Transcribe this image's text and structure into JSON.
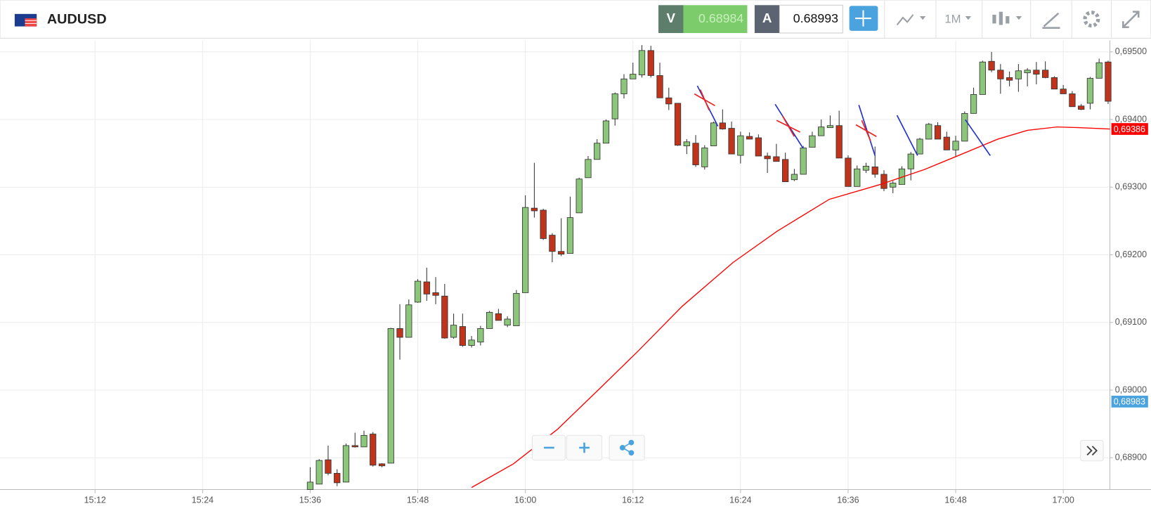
{
  "header": {
    "symbol": "AUDUSD",
    "sell": {
      "label": "V",
      "price": "0.68984"
    },
    "buy": {
      "label": "A",
      "price": "0.68993"
    },
    "timeframe": "1M"
  },
  "chart_data": {
    "type": "candlestick",
    "up_color": "#8cc67a",
    "down_color": "#c1341c",
    "grid": true,
    "xlim": [
      901.4,
      1025.2
    ],
    "ylim": [
      0.68853,
      0.69517
    ],
    "xticks": [
      {
        "value": 912,
        "label": "15:12"
      },
      {
        "value": 924,
        "label": "15:24"
      },
      {
        "value": 936,
        "label": "15:36"
      },
      {
        "value": 948,
        "label": "15:48"
      },
      {
        "value": 960,
        "label": "16:00"
      },
      {
        "value": 972,
        "label": "16:12"
      },
      {
        "value": 984,
        "label": "16:24"
      },
      {
        "value": 996,
        "label": "16:36"
      },
      {
        "value": 1008,
        "label": "16:48"
      },
      {
        "value": 1020,
        "label": "17:00"
      }
    ],
    "yticks": [
      {
        "value": 0.689,
        "label": "0,68900"
      },
      {
        "value": 0.69,
        "label": "0,69000"
      },
      {
        "value": 0.691,
        "label": "0,69100"
      },
      {
        "value": 0.692,
        "label": "0,69200"
      },
      {
        "value": 0.693,
        "label": "0,69300"
      },
      {
        "value": 0.694,
        "label": "0,69400"
      },
      {
        "value": 0.695,
        "label": "0,69500"
      }
    ],
    "x": [
      936,
      937,
      938,
      939,
      940,
      941,
      942,
      943,
      944,
      945,
      946,
      947,
      948,
      949,
      950,
      951,
      952,
      953,
      954,
      955,
      956,
      957,
      958,
      959,
      960,
      961,
      962,
      963,
      964,
      965,
      966,
      967,
      968,
      969,
      970,
      971,
      972,
      973,
      974,
      975,
      976,
      977,
      978,
      979,
      980,
      981,
      982,
      983,
      984,
      985,
      986,
      987,
      988,
      989,
      990,
      991,
      992,
      993,
      994,
      995,
      996,
      997,
      998,
      999,
      1000,
      1001,
      1002,
      1003,
      1004,
      1005,
      1006,
      1007,
      1008,
      1009,
      1010,
      1011,
      1012,
      1013,
      1014,
      1015,
      1016,
      1017,
      1018,
      1019,
      1020,
      1021,
      1022,
      1023,
      1024,
      1025
    ],
    "open": [
      0.68853,
      0.68861,
      0.68897,
      0.68877,
      0.68864,
      0.68918,
      0.68916,
      0.68935,
      0.68891,
      0.68892,
      0.69091,
      0.69078,
      0.6913,
      0.6916,
      0.69144,
      0.69139,
      0.69078,
      0.69094,
      0.69066,
      0.69071,
      0.69091,
      0.69113,
      0.69096,
      0.69095,
      0.69144,
      0.69269,
      0.69266,
      0.69229,
      0.69205,
      0.69202,
      0.69262,
      0.69314,
      0.69341,
      0.69365,
      0.69401,
      0.69438,
      0.6946,
      0.69466,
      0.69502,
      0.69465,
      0.69432,
      0.69424,
      0.69361,
      0.69365,
      0.6933,
      0.69361,
      0.69395,
      0.69387,
      0.69347,
      0.69375,
      0.69373,
      0.69346,
      0.69345,
      0.69341,
      0.69311,
      0.69319,
      0.69359,
      0.69376,
      0.69388,
      0.69391,
      0.69343,
      0.69301,
      0.69325,
      0.6933,
      0.69319,
      0.693,
      0.69304,
      0.69327,
      0.69349,
      0.69371,
      0.69391,
      0.69374,
      0.69355,
      0.69368,
      0.69409,
      0.69437,
      0.69486,
      0.69473,
      0.69462,
      0.6946,
      0.69469,
      0.69473,
      0.69473,
      0.69462,
      0.69445,
      0.69438,
      0.6942,
      0.69424,
      0.69461,
      0.69485
    ],
    "high": [
      0.68886,
      0.68898,
      0.68918,
      0.68883,
      0.68921,
      0.68937,
      0.6894,
      0.68938,
      0.68892,
      0.69092,
      0.69127,
      0.69134,
      0.69164,
      0.69181,
      0.69167,
      0.69157,
      0.69113,
      0.69113,
      0.6908,
      0.69095,
      0.69117,
      0.6912,
      0.69109,
      0.69148,
      0.69288,
      0.69336,
      0.69268,
      0.69232,
      0.69254,
      0.69286,
      0.69314,
      0.69346,
      0.69371,
      0.694,
      0.6944,
      0.69467,
      0.69484,
      0.6951,
      0.69509,
      0.69484,
      0.69447,
      0.69424,
      0.69371,
      0.69377,
      0.69362,
      0.69397,
      0.69415,
      0.69397,
      0.69382,
      0.69381,
      0.69378,
      0.69351,
      0.69364,
      0.69351,
      0.69327,
      0.69361,
      0.69382,
      0.694,
      0.69406,
      0.69413,
      0.69347,
      0.69332,
      0.69336,
      0.6936,
      0.69325,
      0.69309,
      0.69331,
      0.69352,
      0.69373,
      0.69395,
      0.69396,
      0.69382,
      0.69376,
      0.69412,
      0.69447,
      0.69487,
      0.695,
      0.69482,
      0.69471,
      0.69482,
      0.69476,
      0.69485,
      0.69486,
      0.69464,
      0.69451,
      0.69442,
      0.69423,
      0.69463,
      0.6949,
      0.69487
    ],
    "low": [
      0.68853,
      0.68861,
      0.68874,
      0.68858,
      0.68864,
      0.68915,
      0.68916,
      0.68887,
      0.68886,
      0.68892,
      0.69045,
      0.69078,
      0.69129,
      0.69132,
      0.69127,
      0.69076,
      0.69076,
      0.69064,
      0.69063,
      0.69066,
      0.69091,
      0.69103,
      0.69093,
      0.69095,
      0.69144,
      0.69255,
      0.69222,
      0.69189,
      0.69198,
      0.69202,
      0.69262,
      0.69314,
      0.69341,
      0.69365,
      0.69391,
      0.69431,
      0.6946,
      0.69462,
      0.69462,
      0.69432,
      0.69414,
      0.69361,
      0.69349,
      0.6933,
      0.69326,
      0.69361,
      0.69385,
      0.69349,
      0.69335,
      0.69371,
      0.69346,
      0.69321,
      0.69338,
      0.69308,
      0.69309,
      0.69319,
      0.69359,
      0.69376,
      0.69388,
      0.69343,
      0.69301,
      0.69301,
      0.69321,
      0.69314,
      0.69294,
      0.69291,
      0.69304,
      0.6931,
      0.69349,
      0.69371,
      0.69371,
      0.69355,
      0.69345,
      0.69368,
      0.69409,
      0.69437,
      0.6947,
      0.69438,
      0.69449,
      0.69441,
      0.69449,
      0.69452,
      0.69461,
      0.69445,
      0.69438,
      0.69419,
      0.69414,
      0.69415,
      0.69461,
      0.69423
    ],
    "close": [
      0.68864,
      0.68896,
      0.68877,
      0.68863,
      0.68918,
      0.68916,
      0.68933,
      0.68889,
      0.68888,
      0.69091,
      0.69078,
      0.69126,
      0.69161,
      0.69142,
      0.6914,
      0.69077,
      0.69096,
      0.69066,
      0.69074,
      0.69091,
      0.69115,
      0.69103,
      0.69105,
      0.69143,
      0.6927,
      0.69265,
      0.69224,
      0.69205,
      0.69201,
      0.69255,
      0.69312,
      0.69341,
      0.69365,
      0.69398,
      0.69438,
      0.6946,
      0.69467,
      0.69502,
      0.69465,
      0.69432,
      0.69423,
      0.69362,
      0.69367,
      0.69333,
      0.69358,
      0.69395,
      0.69386,
      0.69349,
      0.69376,
      0.69371,
      0.69346,
      0.69342,
      0.69338,
      0.69308,
      0.69319,
      0.69358,
      0.69376,
      0.69389,
      0.69391,
      0.69343,
      0.69301,
      0.69327,
      0.69331,
      0.69319,
      0.69298,
      0.69306,
      0.69327,
      0.69349,
      0.69371,
      0.69393,
      0.69371,
      0.69355,
      0.69368,
      0.69409,
      0.69437,
      0.69485,
      0.69473,
      0.6946,
      0.69458,
      0.69472,
      0.69473,
      0.69467,
      0.69462,
      0.69445,
      0.69438,
      0.69419,
      0.69415,
      0.69461,
      0.69484,
      0.69427
    ],
    "ma": {
      "color": "#ff0000",
      "x": [
        954,
        958.67,
        963.58,
        968.5,
        972.6,
        977.5,
        983.2,
        988.1,
        993.9,
        999.6,
        1004.5,
        1007.8,
        1012.7,
        1016,
        1019.3,
        1021.7,
        1025.2
      ],
      "values": [
        0.68856,
        0.68891,
        0.68942,
        0.69005,
        0.69058,
        0.69124,
        0.69189,
        0.69235,
        0.69282,
        0.69304,
        0.69326,
        0.69344,
        0.69371,
        0.69384,
        0.69389,
        0.69388,
        0.69386
      ]
    },
    "price_labels": [
      {
        "value": 0.69386,
        "label": "0,69386",
        "color": "#ff0000"
      },
      {
        "value": 0.68983,
        "label": "0,68983",
        "color": "#4aa3df"
      }
    ]
  }
}
